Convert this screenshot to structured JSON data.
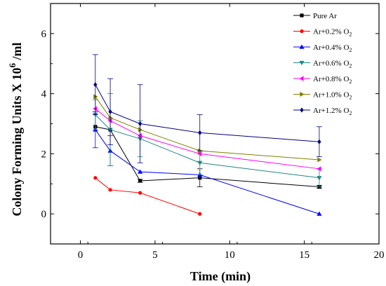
{
  "chart_data": {
    "type": "line",
    "title": "",
    "xlabel": "Time (min)",
    "ylabel_main": "Colony Forming Units X 10",
    "ylabel_exp": "6",
    "ylabel_suffix": " /ml",
    "xlim": [
      -2,
      20
    ],
    "ylim": [
      -1,
      7
    ],
    "xticks": [
      0,
      5,
      10,
      15,
      20
    ],
    "yticks": [
      0,
      2,
      4,
      6
    ],
    "grid": false,
    "legend_position": "top-right",
    "series": [
      {
        "name_main": "Pure Ar",
        "name_sub": "",
        "color": "#000000",
        "marker": "square",
        "x": [
          1,
          2,
          4,
          8,
          16
        ],
        "y": [
          2.9,
          2.8,
          1.1,
          1.2,
          0.9
        ],
        "err": [
          0,
          0,
          0.05,
          0.3,
          0.05
        ]
      },
      {
        "name_main": "Ar+0.2% O",
        "name_sub": "2",
        "color": "#ff0000",
        "marker": "circle",
        "x": [
          1,
          2,
          4,
          8
        ],
        "y": [
          1.2,
          0.8,
          0.7,
          0.0
        ],
        "err": [
          0,
          0,
          0,
          0
        ]
      },
      {
        "name_main": "Ar+0.4% O",
        "name_sub": "2",
        "color": "#0000ff",
        "marker": "triangle-up",
        "x": [
          1,
          2,
          4,
          8,
          16
        ],
        "y": [
          2.8,
          2.1,
          1.4,
          1.3,
          0.0
        ],
        "err": [
          0.6,
          0.5,
          0,
          0,
          0
        ]
      },
      {
        "name_main": "Ar+0.6% O",
        "name_sub": "2",
        "color": "#1f8a80",
        "marker": "triangle-down",
        "x": [
          1,
          2,
          4,
          8,
          16
        ],
        "y": [
          3.3,
          2.8,
          2.5,
          1.7,
          1.2
        ],
        "err": [
          0.5,
          1.2,
          0.6,
          0.4,
          0.3
        ]
      },
      {
        "name_main": "Ar+0.8% O",
        "name_sub": "2",
        "color": "#ff00ff",
        "marker": "triangle-left",
        "x": [
          1,
          2,
          4,
          8,
          16
        ],
        "y": [
          3.5,
          3.1,
          2.6,
          2.0,
          1.5
        ],
        "err": [
          0,
          0,
          0,
          0,
          0
        ]
      },
      {
        "name_main": "Ar+1.0% O",
        "name_sub": "2",
        "color": "#808000",
        "marker": "triangle-right",
        "x": [
          1,
          2,
          4,
          8,
          16
        ],
        "y": [
          3.9,
          3.2,
          2.8,
          2.1,
          1.8
        ],
        "err": [
          0,
          0,
          0,
          0,
          0
        ]
      },
      {
        "name_main": "Ar+1.2% O",
        "name_sub": "2",
        "color": "#000080",
        "marker": "diamond",
        "x": [
          1,
          2,
          4,
          8,
          16
        ],
        "y": [
          4.3,
          3.4,
          3.0,
          2.7,
          2.4
        ],
        "err": [
          1.0,
          1.1,
          1.3,
          0.6,
          0.5
        ]
      }
    ]
  }
}
